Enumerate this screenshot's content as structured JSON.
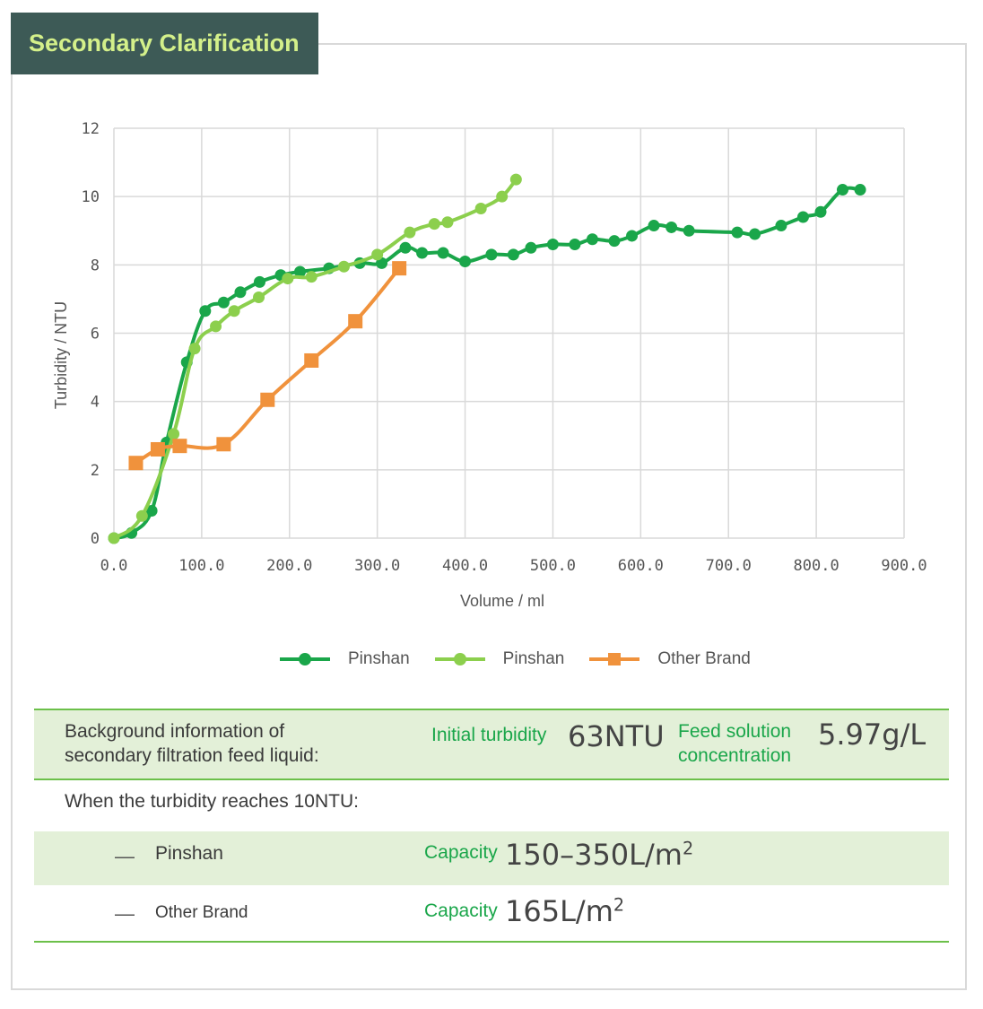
{
  "title": "Secondary Clarification",
  "chart_data": {
    "type": "line",
    "xlabel": "Volume / ml",
    "ylabel": "Turbidity / NTU",
    "xlim": [
      0,
      900
    ],
    "ylim": [
      0,
      12
    ],
    "x_ticks": [
      "0.0",
      "100.0",
      "200.0",
      "300.0",
      "400.0",
      "500.0",
      "600.0",
      "700.0",
      "800.0",
      "900.0"
    ],
    "y_ticks": [
      "0",
      "2",
      "4",
      "6",
      "8",
      "10",
      "12"
    ],
    "grid": true,
    "legend_position": "bottom",
    "series": [
      {
        "name": "Pinshan",
        "color": "#1aa64a",
        "marker": "circle",
        "points": [
          [
            0,
            0
          ],
          [
            20,
            0.15
          ],
          [
            43,
            0.8
          ],
          [
            60,
            2.8
          ],
          [
            83,
            5.15
          ],
          [
            104,
            6.65
          ],
          [
            125,
            6.9
          ],
          [
            144,
            7.2
          ],
          [
            166,
            7.5
          ],
          [
            190,
            7.7
          ],
          [
            212,
            7.8
          ],
          [
            245,
            7.9
          ],
          [
            280,
            8.05
          ],
          [
            305,
            8.05
          ],
          [
            332,
            8.5
          ],
          [
            351,
            8.35
          ],
          [
            375,
            8.35
          ],
          [
            400,
            8.1
          ],
          [
            430,
            8.3
          ],
          [
            455,
            8.3
          ],
          [
            475,
            8.5
          ],
          [
            500,
            8.6
          ],
          [
            525,
            8.6
          ],
          [
            545,
            8.75
          ],
          [
            570,
            8.7
          ],
          [
            590,
            8.85
          ],
          [
            615,
            9.15
          ],
          [
            635,
            9.1
          ],
          [
            655,
            9.0
          ],
          [
            710,
            8.95
          ],
          [
            730,
            8.9
          ],
          [
            760,
            9.15
          ],
          [
            785,
            9.4
          ],
          [
            805,
            9.55
          ],
          [
            830,
            10.2
          ],
          [
            850,
            10.2
          ]
        ]
      },
      {
        "name": "Pinshan",
        "color": "#8ccf4d",
        "marker": "circle",
        "points": [
          [
            0,
            0
          ],
          [
            32,
            0.65
          ],
          [
            68,
            3.05
          ],
          [
            92,
            5.55
          ],
          [
            116,
            6.2
          ],
          [
            137,
            6.65
          ],
          [
            165,
            7.05
          ],
          [
            198,
            7.6
          ],
          [
            225,
            7.65
          ],
          [
            262,
            7.95
          ],
          [
            300,
            8.3
          ],
          [
            337,
            8.95
          ],
          [
            365,
            9.2
          ],
          [
            380,
            9.25
          ],
          [
            418,
            9.65
          ],
          [
            442,
            10.0
          ],
          [
            458,
            10.5
          ]
        ]
      },
      {
        "name": "Other Brand",
        "color": "#f0923c",
        "marker": "square",
        "points": [
          [
            25,
            2.2
          ],
          [
            50,
            2.6
          ],
          [
            75,
            2.7
          ],
          [
            125,
            2.75
          ],
          [
            175,
            4.05
          ],
          [
            225,
            5.2
          ],
          [
            275,
            6.35
          ],
          [
            325,
            7.9
          ]
        ]
      }
    ]
  },
  "info": {
    "background_label": [
      "Background information of",
      "secondary filtration feed liquid:"
    ],
    "initial_turbidity_label": "Initial turbidity",
    "initial_turbidity_value": "63NTU",
    "feed_concentration_label": [
      "Feed solution",
      "concentration"
    ],
    "feed_concentration_value": "5.97g/L",
    "condition": "When the turbidity reaches 10NTU:",
    "dash": "—",
    "capacity_label": "Capacity",
    "rows": [
      {
        "name": "Pinshan",
        "capacity": "150–350L/m",
        "unit_exp": "2"
      },
      {
        "name": "Other Brand",
        "capacity": "165L/m",
        "unit_exp": "2"
      }
    ]
  }
}
